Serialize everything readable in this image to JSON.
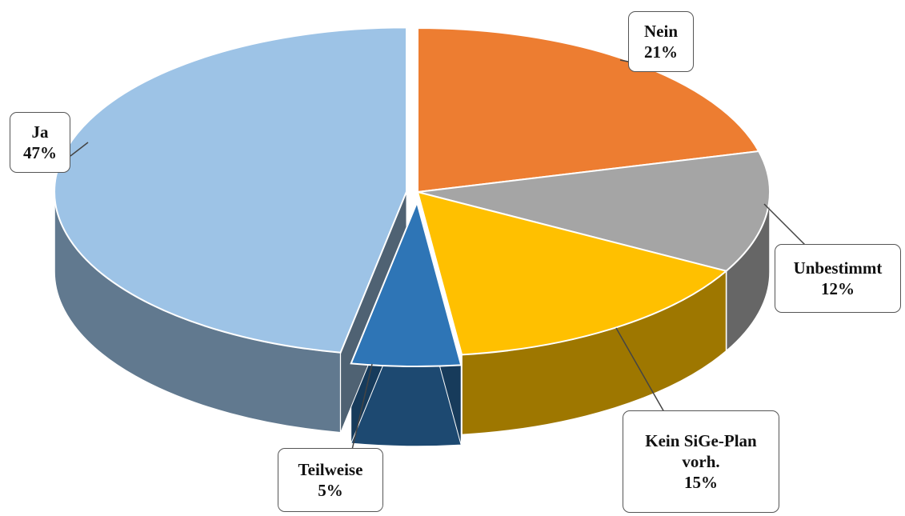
{
  "chart_data": {
    "type": "pie",
    "categories": [
      "Nein",
      "Unbestimmt",
      "Kein SiGe-Plan vorh.",
      "Teilweise",
      "Ja"
    ],
    "values": [
      21,
      12,
      15,
      5,
      47
    ],
    "value_labels": [
      "21%",
      "12%",
      "15%",
      "5%",
      "47%"
    ],
    "colors": [
      "#ED7D31",
      "#A5A5A5",
      "#FFC000",
      "#2E75B6",
      "#9DC3E6"
    ]
  }
}
